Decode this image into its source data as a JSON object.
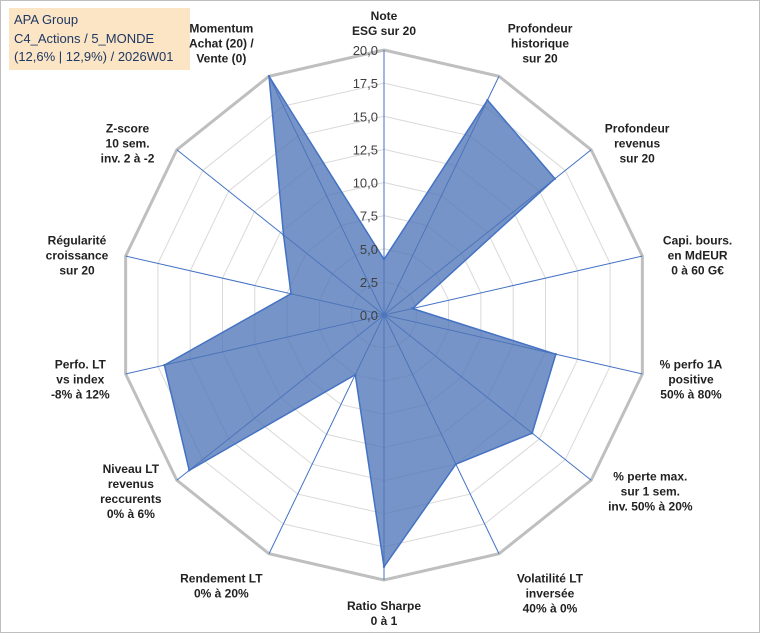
{
  "info": {
    "line1": "APA Group",
    "line2": "C4_Actions / 5_MONDE",
    "line3": "(12,6% | 12,9%) / 2026W01"
  },
  "chart_data": {
    "type": "radar",
    "title": "",
    "rmin": 0,
    "rmax": 20,
    "ticks": [
      "0,0",
      "2,5",
      "5,0",
      "7,5",
      "10,0",
      "12,5",
      "15,0",
      "17,5",
      "20,0"
    ],
    "tick_values": [
      0,
      2.5,
      5,
      7.5,
      10,
      12.5,
      15,
      17.5,
      20
    ],
    "axes": [
      [
        "Note",
        "ESG sur 20"
      ],
      [
        "Profondeur",
        "historique",
        "sur 20"
      ],
      [
        "Profondeur",
        "revenus",
        "sur 20"
      ],
      [
        "Capi. bours.",
        "en MdEUR",
        "0 à 60 G€"
      ],
      [
        "% perfo 1A",
        "positive",
        "50% à 80%"
      ],
      [
        "% perte max.",
        "sur 1 sem.",
        "inv. 50% à 20%"
      ],
      [
        "Volatilité LT",
        "inversée",
        "40% à 0%"
      ],
      [
        "Ratio Sharpe",
        "0 à 1"
      ],
      [
        "Rendement LT",
        "0% à 20%"
      ],
      [
        "Niveau LT",
        "revenus",
        "reccurents",
        "0% à 6%"
      ],
      [
        "Perfo. LT",
        "vs index",
        "-8% à 12%"
      ],
      [
        "Régularité",
        "croissance",
        "sur 20"
      ],
      [
        "Z-score",
        "10 sem.",
        "inv. 2 à -2"
      ],
      [
        "Momentum",
        "Achat (20) /",
        "Vente (0)"
      ]
    ],
    "values": [
      4.2,
      18.0,
      16.5,
      2.2,
      13.3,
      14.3,
      12.5,
      19.0,
      5.0,
      18.8,
      17.0,
      7.2,
      9.7,
      20.0
    ],
    "colors": {
      "fill": "#4f76b7",
      "fill_opacity": 0.78,
      "stroke": "#4472c4",
      "grid": "#d9d9d9",
      "outer_ring": "#bfbfbf",
      "axis_line": "#4472c4"
    }
  }
}
